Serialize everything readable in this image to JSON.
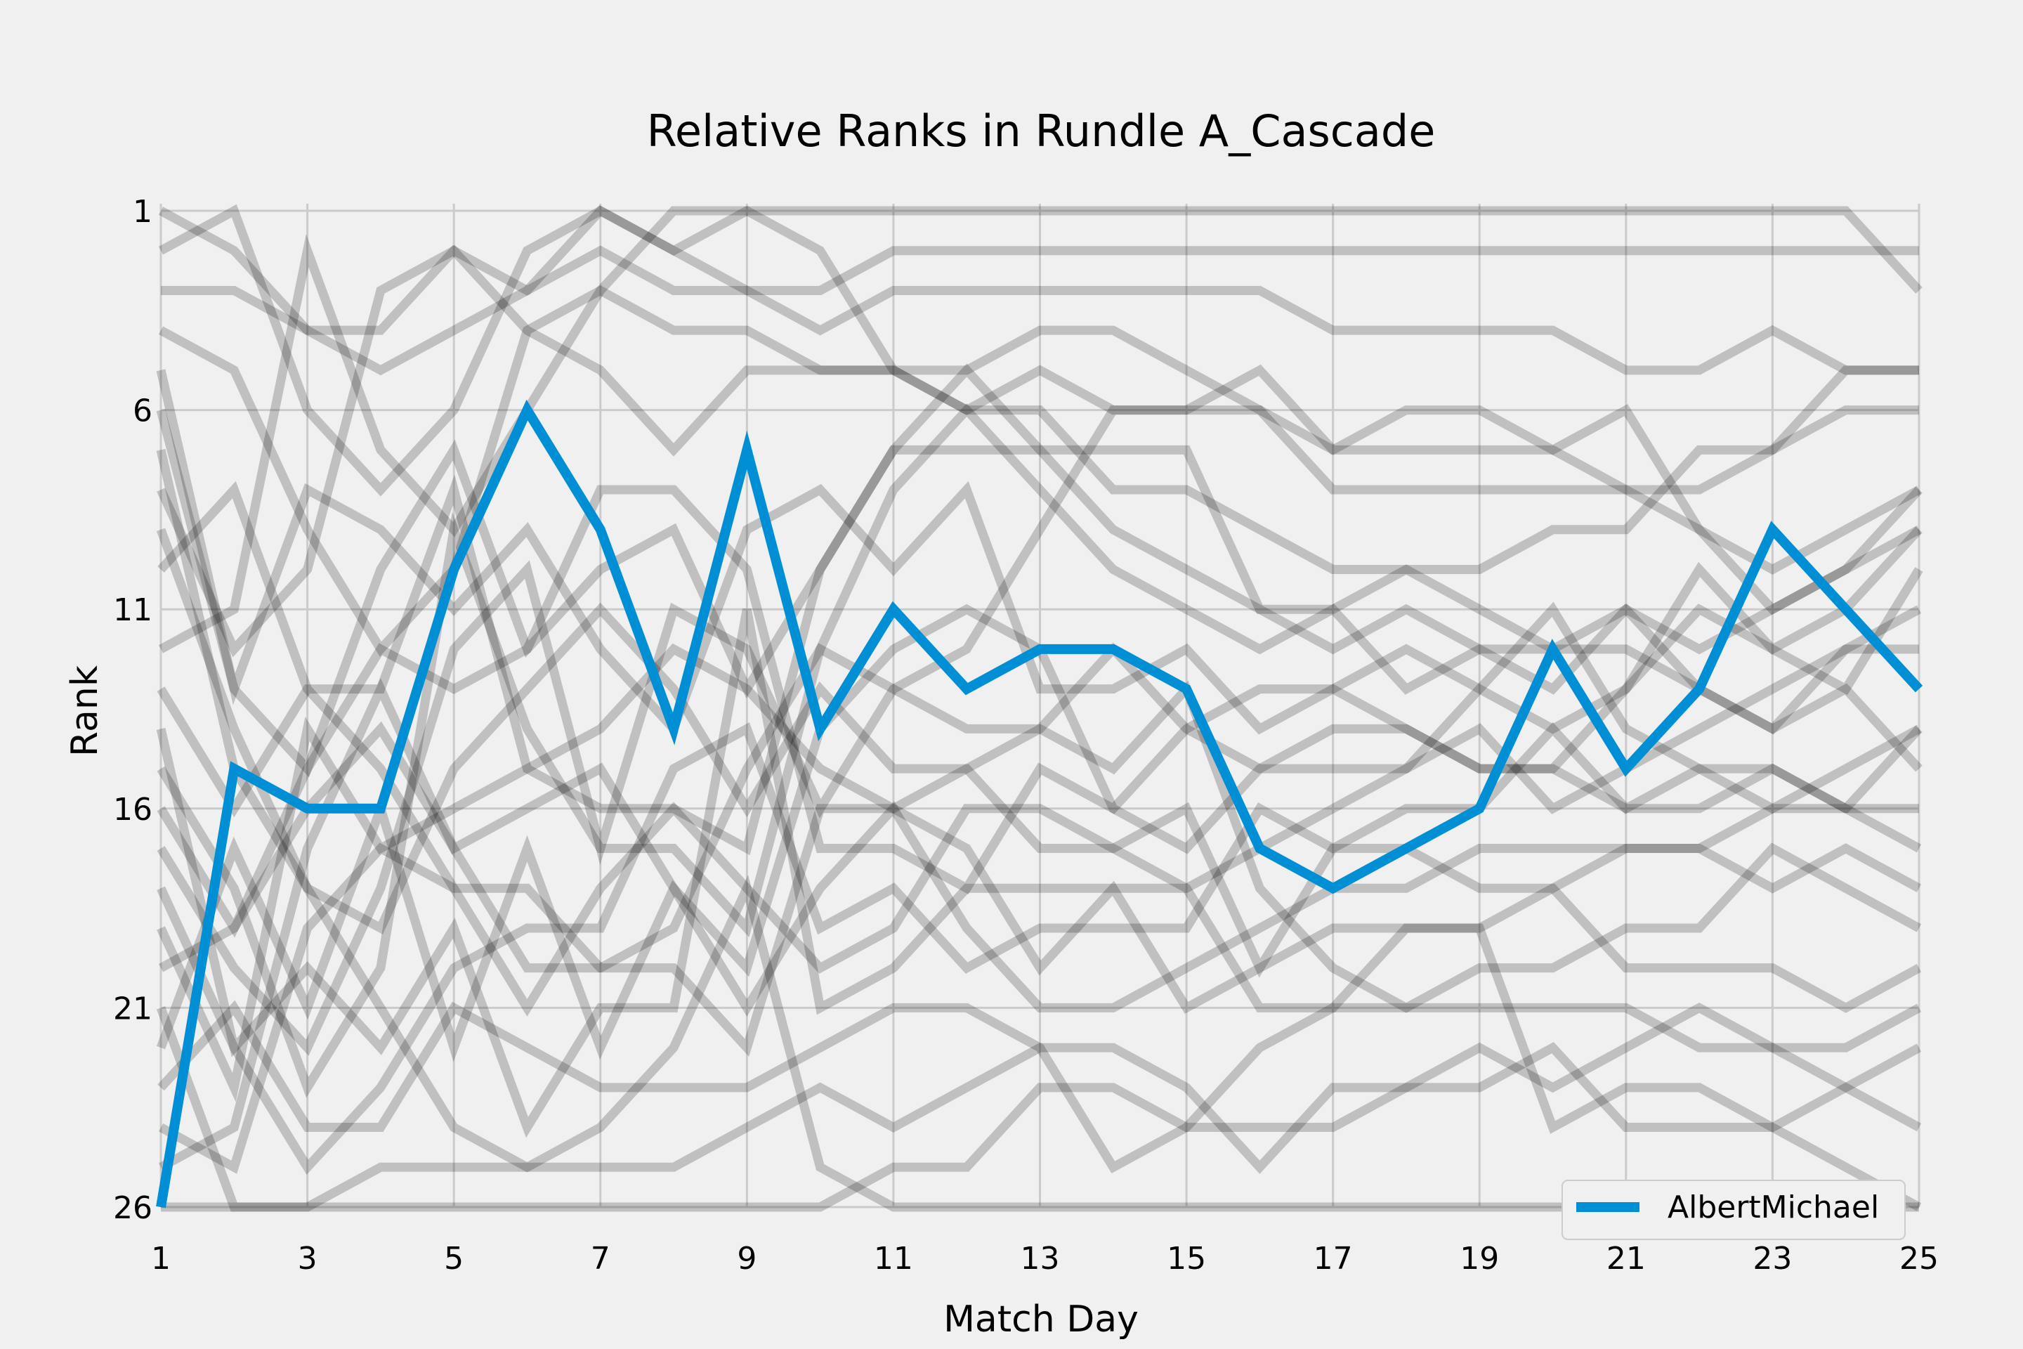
{
  "chart_data": {
    "type": "line",
    "title": "Relative Ranks in Rundle A_Cascade",
    "xlabel": "Match Day",
    "ylabel": "Rank",
    "xlim": [
      1,
      25
    ],
    "ylim": [
      26,
      1
    ],
    "y_inverted": true,
    "xticks": [
      1,
      3,
      5,
      7,
      9,
      11,
      13,
      15,
      17,
      19,
      21,
      23,
      25
    ],
    "yticks": [
      1,
      6,
      11,
      16,
      21,
      26
    ],
    "grid": true,
    "legend_position": "bottom-right",
    "highlight_color": "#008fd5",
    "background_color": "#f0f0f0",
    "other_color": "#000000",
    "other_opacity": 0.2,
    "highlight_series": {
      "name": "AlbertMichael",
      "x": [
        1,
        2,
        3,
        4,
        5,
        6,
        7,
        8,
        9,
        10,
        11,
        12,
        13,
        14,
        15,
        16,
        17,
        18,
        19,
        20,
        21,
        22,
        23,
        24,
        25
      ],
      "values": [
        26,
        15,
        16,
        16,
        10,
        6,
        9,
        14,
        7,
        14,
        11,
        13,
        12,
        12,
        13,
        17,
        18,
        17,
        16,
        12,
        15,
        13,
        9,
        11,
        13
      ]
    },
    "other_series": [
      {
        "values": [
          1,
          2,
          4,
          5,
          4,
          3,
          1,
          2,
          3,
          4,
          3,
          3,
          3,
          3,
          3,
          3,
          4,
          4,
          4,
          4,
          5,
          5,
          4,
          5,
          5
        ]
      },
      {
        "values": [
          3,
          3,
          4,
          4,
          2,
          3,
          2,
          3,
          3,
          3,
          2,
          2,
          2,
          2,
          2,
          2,
          2,
          2,
          2,
          2,
          2,
          2,
          2,
          2,
          2
        ]
      },
      {
        "values": [
          2,
          1,
          6,
          8,
          6,
          2,
          1,
          2,
          1,
          1,
          1,
          1,
          1,
          1,
          1,
          1,
          1,
          1,
          1,
          1,
          1,
          1,
          1,
          1,
          3
        ]
      },
      {
        "values": [
          4,
          5,
          9,
          12,
          10,
          4,
          3,
          4,
          4,
          5,
          5,
          5,
          4,
          4,
          5,
          6,
          7,
          6,
          6,
          7,
          6,
          9,
          11,
          10,
          8
        ]
      },
      {
        "values": [
          12,
          11,
          2,
          7,
          9,
          6,
          3,
          1,
          1,
          2,
          5,
          6,
          5,
          6,
          6,
          6,
          8,
          8,
          8,
          8,
          8,
          9,
          10,
          9,
          8
        ]
      },
      {
        "values": [
          8,
          12,
          10,
          3,
          2,
          4,
          5,
          7,
          5,
          5,
          5,
          6,
          6,
          8,
          8,
          9,
          10,
          10,
          10,
          9,
          9,
          7,
          7,
          5,
          5
        ]
      },
      {
        "values": [
          6,
          13,
          15,
          10,
          7,
          12,
          10,
          9,
          13,
          10,
          7,
          5,
          7,
          9,
          10,
          11,
          12,
          11,
          12,
          13,
          11,
          12,
          11,
          10,
          9
        ]
      },
      {
        "values": [
          13,
          16,
          13,
          13,
          8,
          15,
          16,
          16,
          17,
          10,
          7,
          7,
          7,
          7,
          7,
          11,
          11,
          10,
          11,
          12,
          11,
          13,
          14,
          13,
          15
        ]
      },
      {
        "values": [
          15,
          18,
          23,
          20,
          9,
          14,
          17,
          17,
          19,
          12,
          8,
          6,
          8,
          10,
          11,
          12,
          11,
          13,
          12,
          12,
          12,
          13,
          14,
          12,
          11
        ]
      },
      {
        "values": [
          17,
          20,
          22,
          18,
          12,
          10,
          17,
          11,
          12,
          16,
          13,
          12,
          9,
          6,
          6,
          5,
          7,
          7,
          7,
          7,
          8,
          8,
          7,
          6,
          6
        ]
      },
      {
        "values": [
          19,
          23,
          14,
          17,
          16,
          15,
          14,
          12,
          13,
          15,
          16,
          15,
          14,
          12,
          14,
          15,
          15,
          15,
          14,
          16,
          15,
          14,
          13,
          12,
          12
        ]
      },
      {
        "values": [
          22,
          17,
          21,
          16,
          22,
          17,
          22,
          18,
          20,
          14,
          12,
          11,
          12,
          16,
          17,
          15,
          14,
          14,
          15,
          15,
          16,
          16,
          15,
          16,
          17
        ]
      },
      {
        "values": [
          14,
          22,
          20,
          22,
          19,
          24,
          21,
          21,
          11,
          21,
          20,
          18,
          18,
          18,
          18,
          17,
          16,
          15,
          13,
          14,
          13,
          10,
          12,
          11,
          9
        ]
      },
      {
        "values": [
          24,
          25,
          19,
          17,
          18,
          18,
          20,
          20,
          22,
          16,
          16,
          17,
          20,
          18,
          21,
          20,
          19,
          19,
          19,
          18,
          17,
          17,
          18,
          17,
          18
        ]
      },
      {
        "values": [
          25,
          24,
          17,
          13,
          17,
          16,
          15,
          18,
          21,
          18,
          16,
          19,
          21,
          21,
          20,
          19,
          18,
          18,
          17,
          17,
          17,
          17,
          16,
          16,
          14
        ]
      },
      {
        "values": [
          20,
          19,
          16,
          14,
          17,
          20,
          20,
          19,
          15,
          12,
          13,
          14,
          14,
          15,
          13,
          18,
          20,
          21,
          20,
          20,
          19,
          19,
          17,
          18,
          19
        ]
      },
      {
        "values": [
          21,
          26,
          26,
          26,
          26,
          26,
          26,
          26,
          26,
          26,
          25,
          25,
          23,
          23,
          24,
          24,
          24,
          23,
          23,
          22,
          24,
          24,
          24,
          23,
          22
        ]
      },
      {
        "values": [
          26,
          26,
          26,
          25,
          25,
          25,
          25,
          25,
          24,
          23,
          24,
          23,
          22,
          22,
          23,
          25,
          23,
          23,
          22,
          23,
          22,
          21,
          22,
          22,
          21
        ]
      },
      {
        "values": [
          23,
          21,
          24,
          24,
          21,
          22,
          23,
          23,
          23,
          22,
          21,
          21,
          22,
          25,
          24,
          22,
          21,
          21,
          21,
          21,
          21,
          22,
          22,
          23,
          24
        ]
      },
      {
        "values": [
          10,
          8,
          13,
          15,
          18,
          21,
          18,
          16,
          18,
          20,
          19,
          16,
          16,
          17,
          18,
          21,
          21,
          19,
          19,
          24,
          23,
          23,
          24,
          25,
          26
        ]
      },
      {
        "values": [
          9,
          14,
          18,
          21,
          24,
          25,
          24,
          22,
          18,
          25,
          26,
          26,
          26,
          26,
          26,
          26,
          26,
          26,
          26,
          26,
          26,
          26,
          26,
          26,
          26
        ]
      },
      {
        "values": [
          18,
          22,
          25,
          23,
          20,
          19,
          19,
          15,
          14,
          19,
          18,
          20,
          19,
          19,
          19,
          16,
          17,
          16,
          16,
          14,
          16,
          15,
          15,
          16,
          16
        ]
      },
      {
        "values": [
          16,
          19,
          15,
          12,
          13,
          12,
          8,
          8,
          10,
          17,
          17,
          18,
          15,
          16,
          14,
          13,
          13,
          12,
          13,
          11,
          14,
          15,
          16,
          15,
          14
        ]
      },
      {
        "values": [
          7,
          15,
          18,
          19,
          15,
          13,
          11,
          13,
          16,
          13,
          15,
          15,
          17,
          17,
          16,
          20,
          17,
          17,
          18,
          18,
          20,
          20,
          20,
          21,
          20
        ]
      },
      {
        "values": [
          5,
          13,
          8,
          9,
          11,
          9,
          12,
          14,
          9,
          8,
          10,
          8,
          13,
          13,
          12,
          14,
          13,
          14,
          15,
          15,
          13,
          11,
          12,
          13,
          10
        ]
      }
    ]
  }
}
